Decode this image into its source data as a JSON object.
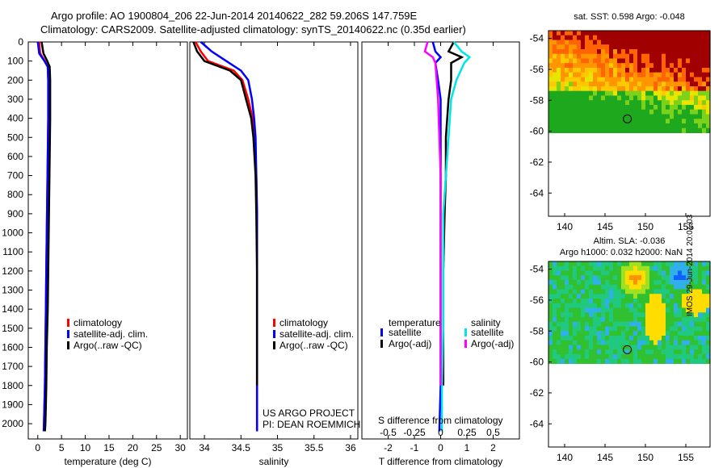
{
  "header": {
    "line1": "Argo profile: AO 1900804_206 22-Jun-2014 20140622_282 59.206S 147.759E",
    "line2": "Climatology: CARS2009. Satellite-adjusted climatology: synTS_20140622.nc (0.35d earlier)"
  },
  "watermark": "IMOS 29-Jun-2014 20:01:03",
  "colors": {
    "climatology": "#ff0000",
    "satellite": "#0000ff",
    "argo": "#000000",
    "sal_satellite": "#00e5e5",
    "sal_argo": "#ff00ff"
  },
  "chart_data": [
    {
      "type": "line",
      "xlabel": "temperature (deg C)",
      "ylabel": "",
      "xlim": [
        -2,
        31.5
      ],
      "ylim": [
        2080,
        0
      ],
      "xticks": [
        "0",
        "5",
        "10",
        "15",
        "20",
        "25",
        "30"
      ],
      "yticks": [
        "0",
        "100",
        "200",
        "300",
        "400",
        "500",
        "600",
        "700",
        "800",
        "900",
        "1000",
        "1100",
        "1200",
        "1300",
        "1400",
        "1500",
        "1600",
        "1700",
        "1800",
        "1900",
        "2000"
      ],
      "legend": [
        "climatology",
        "satellite-adj. clim.",
        "Argo(..raw -QC)"
      ],
      "series": [
        {
          "name": "climatology",
          "color": "#ff0000",
          "x": [
            0.3,
            0.5,
            1.5,
            2.1,
            2.2,
            2.2,
            2.1,
            2.0,
            1.9,
            1.8,
            1.7,
            1.6,
            1.5,
            1.4,
            1.3,
            1.25
          ],
          "y": [
            0,
            60,
            100,
            130,
            200,
            400,
            600,
            800,
            1000,
            1200,
            1400,
            1600,
            1800,
            1900,
            2000,
            2040
          ]
        },
        {
          "name": "satellite-adj. clim.",
          "color": "#0000ff",
          "x": [
            0.0,
            0.3,
            1.4,
            2.1,
            2.2,
            2.2,
            2.1,
            2.0,
            1.9,
            1.8,
            1.7,
            1.6,
            1.5,
            1.4,
            1.3,
            1.25
          ],
          "y": [
            0,
            60,
            100,
            130,
            200,
            400,
            600,
            800,
            1000,
            1200,
            1400,
            1600,
            1800,
            1900,
            2000,
            2040
          ]
        },
        {
          "name": "Argo(..raw -QC)",
          "color": "#000000",
          "x": [
            0.8,
            1.2,
            2.0,
            2.5,
            2.6,
            2.6,
            2.5,
            2.4,
            2.3,
            2.2,
            2.1,
            1.9,
            1.8,
            1.7,
            1.6,
            1.5
          ],
          "y": [
            0,
            60,
            100,
            130,
            200,
            400,
            600,
            800,
            1000,
            1200,
            1400,
            1600,
            1800,
            1900,
            2000,
            2040
          ]
        }
      ]
    },
    {
      "type": "line",
      "xlabel": "salinity",
      "xlim": [
        33.8,
        36.1
      ],
      "ylim": [
        2080,
        0
      ],
      "xticks": [
        "34",
        "34.5",
        "35",
        "35.5",
        "36"
      ],
      "legend": [
        "climatology",
        "satellite-adj. clim.",
        "Argo(..raw -QC)"
      ],
      "annotation": [
        "US ARGO PROJECT",
        "PI: DEAN ROEMMICH"
      ],
      "series": [
        {
          "name": "climatology",
          "color": "#ff0000",
          "x": [
            33.88,
            33.95,
            34.05,
            34.4,
            34.52,
            34.6,
            34.66,
            34.69,
            34.71,
            34.72,
            34.72,
            34.72,
            34.72,
            34.72
          ],
          "y": [
            0,
            50,
            100,
            150,
            200,
            300,
            400,
            500,
            700,
            900,
            1200,
            1500,
            1800,
            2040
          ]
        },
        {
          "name": "satellite-adj. clim.",
          "color": "#0000ff",
          "x": [
            33.95,
            34.1,
            34.3,
            34.5,
            34.6,
            34.65,
            34.68,
            34.7,
            34.71,
            34.72,
            34.72,
            34.72,
            34.72,
            34.72
          ],
          "y": [
            0,
            50,
            100,
            150,
            200,
            300,
            400,
            500,
            700,
            900,
            1200,
            1500,
            1800,
            2040
          ]
        },
        {
          "name": "Argo(..raw -QC)",
          "color": "#000000",
          "x": [
            33.85,
            33.9,
            34.0,
            34.35,
            34.5,
            34.57,
            34.64,
            34.67,
            34.7,
            34.71,
            34.72,
            34.72,
            34.72
          ],
          "y": [
            0,
            50,
            100,
            150,
            200,
            300,
            400,
            500,
            700,
            900,
            1200,
            1500,
            1800
          ]
        }
      ]
    },
    {
      "type": "line",
      "xlabel": "T difference from climatology",
      "xlabel_top": "S difference from climatology",
      "xlim": [
        -3,
        3
      ],
      "ylim": [
        2080,
        0
      ],
      "xticks": [
        "-2",
        "-1",
        "0",
        "1",
        "2"
      ],
      "sticks": [
        "-0.5",
        "-0.25",
        "0",
        "0.25",
        "0.5"
      ],
      "legend_temp": {
        "title": "temperature",
        "items": [
          "satellite",
          "Argo(-adj)"
        ]
      },
      "legend_sal": {
        "title": "salinity",
        "items": [
          "satellite",
          "Argo(-adj)"
        ]
      },
      "series": [
        {
          "name": "temperature satellite",
          "color": "#0000ff",
          "x": [
            -0.3,
            -0.2,
            0.0,
            -0.2,
            -0.1,
            0,
            0,
            0,
            0,
            0,
            0,
            0,
            -0.05
          ],
          "y": [
            0,
            50,
            80,
            110,
            200,
            300,
            500,
            700,
            900,
            1200,
            1500,
            1800,
            2040
          ]
        },
        {
          "name": "temperature Argo(-adj)",
          "color": "#000000",
          "x": [
            0.5,
            0.3,
            0.8,
            0.4,
            0.4,
            0.3,
            0.2,
            0.2,
            0.15,
            0.1,
            0.1,
            0.1
          ],
          "y": [
            0,
            50,
            80,
            110,
            200,
            300,
            500,
            700,
            900,
            1200,
            1500,
            1800
          ]
        },
        {
          "name": "salinity satellite",
          "color": "#00e5e5",
          "x": [
            0.5,
            0.8,
            1.1,
            0.9,
            0.6,
            0.4,
            0.3,
            0.2,
            0.1,
            0.1,
            0.1,
            0.05,
            0.05
          ],
          "y": [
            0,
            50,
            80,
            110,
            200,
            300,
            500,
            700,
            900,
            1200,
            1500,
            1800,
            2040
          ]
        },
        {
          "name": "salinity Argo(-adj)",
          "color": "#ff00ff",
          "x": [
            -0.5,
            -0.6,
            -0.3,
            -0.2,
            -0.15,
            -0.1,
            -0.05,
            0,
            0,
            0,
            0,
            0
          ],
          "y": [
            0,
            50,
            80,
            110,
            200,
            300,
            500,
            700,
            900,
            1200,
            1500,
            1800
          ]
        }
      ]
    },
    {
      "type": "heatmap",
      "title": "sat. SST: 0.598 Argo: -0.048",
      "xlim": [
        138,
        158
      ],
      "ylim": [
        -65.5,
        -53.5
      ],
      "xticks": [
        "140",
        "145",
        "150",
        "155"
      ],
      "yticks": [
        "-54",
        "-56",
        "-58",
        "-60",
        "-62",
        "-64"
      ],
      "data_extent_lat": [
        -60,
        -53.5
      ],
      "argo_marker": {
        "lon": 147.759,
        "lat": -59.206
      }
    },
    {
      "type": "heatmap",
      "title": "Altim. SLA: -0.036",
      "subtitle": "Argo h1000: 0.032 h2000: NaN",
      "xlim": [
        138,
        158
      ],
      "ylim": [
        -65.5,
        -53.5
      ],
      "xticks": [
        "140",
        "145",
        "150",
        "155"
      ],
      "yticks": [
        "-54",
        "-56",
        "-58",
        "-60",
        "-62",
        "-64"
      ],
      "data_extent_lat": [
        -60,
        -53.5
      ],
      "argo_marker": {
        "lon": 147.759,
        "lat": -59.206
      }
    }
  ]
}
